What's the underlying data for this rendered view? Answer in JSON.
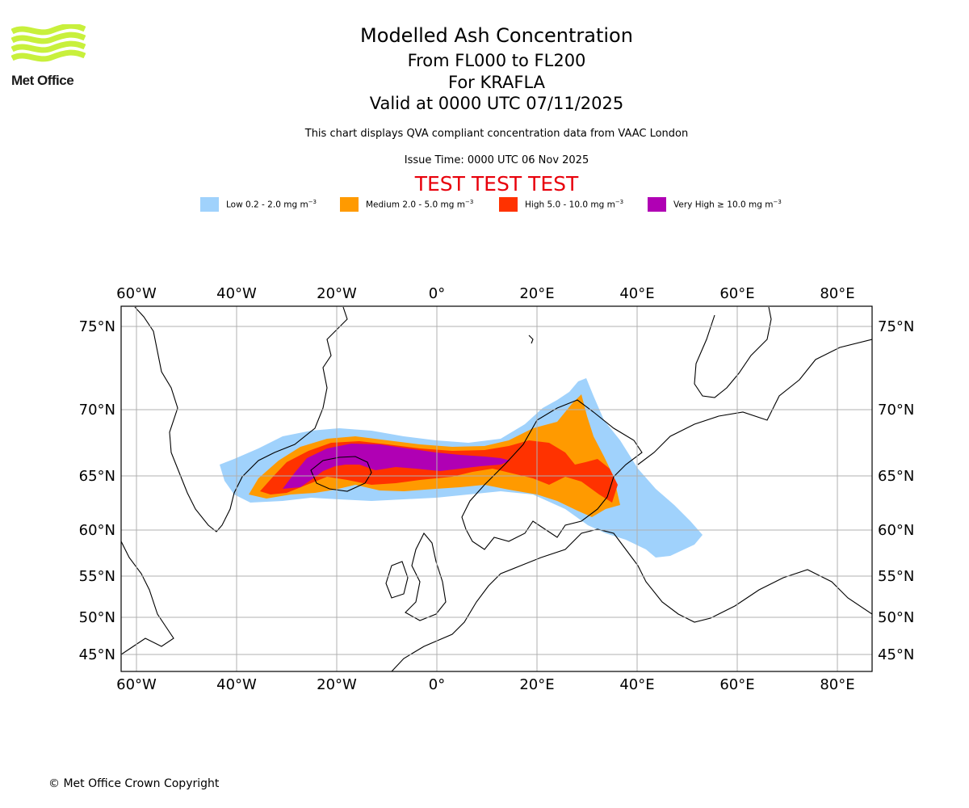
{
  "logo": {
    "name": "Met Office",
    "accent_color": "#c8f03c"
  },
  "header": {
    "title": "Modelled Ash Concentration",
    "flight_levels": "From FL000 to FL200",
    "volcano": "For KRAFLA",
    "valid_time": "Valid at 0000 UTC 07/11/2025",
    "note": "This chart displays QVA compliant concentration data from VAAC London",
    "issue_time": "Issue Time: 0000 UTC 06 Nov 2025",
    "test_banner": "TEST TEST TEST"
  },
  "legend": {
    "unit_exponent": "−3",
    "items": [
      {
        "label": "Low 0.2 - 2.0 mg m",
        "color": "#a0d2fc"
      },
      {
        "label": "Medium 2.0 - 5.0 mg m",
        "color": "#ff9a00"
      },
      {
        "label": "High 5.0 - 10.0 mg m",
        "color": "#ff3200"
      },
      {
        "label": "Very High  ≥  10.0 mg m",
        "color": "#b000b4"
      }
    ]
  },
  "map": {
    "projection": "polar-stereographic",
    "lon_labels": [
      "60°W",
      "40°W",
      "20°W",
      "0°",
      "20°E",
      "40°E",
      "60°E",
      "80°E"
    ],
    "lat_labels": [
      "75°N",
      "70°N",
      "65°N",
      "60°N",
      "55°N",
      "50°N",
      "45°N"
    ],
    "grid": true,
    "grid_color": "#b0b0b0",
    "coastline_color": "#000000"
  },
  "footer": {
    "copyright": "© Met Office Crown Copyright"
  }
}
